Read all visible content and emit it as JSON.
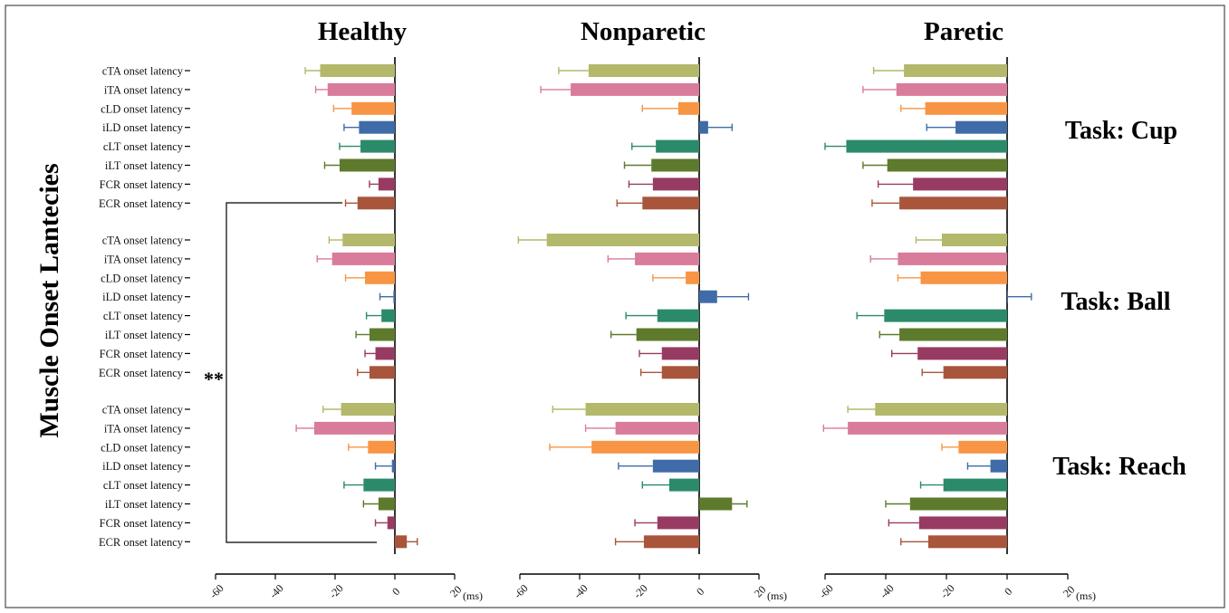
{
  "chart_data": {
    "type": "bar",
    "orientation": "horizontal",
    "y_title": "Muscle Onset Lantecies",
    "unit": "(ms)",
    "xlim": [
      -60,
      20
    ],
    "xticks": [
      -60,
      -40,
      -20,
      0,
      20
    ],
    "categories": [
      "cTA onset latency",
      "iTA onset latency",
      "cLD onset latency",
      "iLD onset latency",
      "cLT onset latency",
      "iLT onset latency",
      "FCR onset latency",
      "ECR onset latency"
    ],
    "muscle_colors": [
      "#b3b86a",
      "#d97b9a",
      "#f79545",
      "#3f6ca8",
      "#2a8a6a",
      "#5e7a2c",
      "#983b62",
      "#a8553b"
    ],
    "significance": "**",
    "panels": [
      {
        "title": "Healthy",
        "tasks": [
          {
            "values": [
              -25,
              -22.5,
              -14.5,
              -12,
              -11.5,
              -18.5,
              -5.5,
              -12.5
            ],
            "errors": [
              5,
              4,
              6,
              5,
              7,
              5,
              3,
              4
            ]
          },
          {
            "values": [
              -17.5,
              -21,
              -10,
              -0.5,
              -4.5,
              -8.5,
              -6.5,
              -8.5
            ],
            "errors": [
              4.5,
              5,
              6.5,
              4.5,
              5,
              4.5,
              3.5,
              4
            ]
          },
          {
            "values": [
              -18,
              -27,
              -9,
              -1,
              -10.5,
              -5.5,
              -2.5,
              4
            ],
            "errors": [
              6,
              6,
              6.5,
              5.5,
              6.5,
              5,
              4,
              3.5
            ]
          }
        ]
      },
      {
        "title": "Nonparetic",
        "tasks": [
          {
            "values": [
              -37,
              -43,
              -7,
              3,
              -14.5,
              -16,
              -15.5,
              -19
            ],
            "errors": [
              10,
              10,
              12,
              8,
              8,
              9,
              8,
              8.5
            ]
          },
          {
            "values": [
              -51,
              -21.5,
              -4.5,
              6,
              -14,
              -21,
              -12.5,
              -12.5
            ],
            "errors": [
              9.5,
              9,
              11,
              10.5,
              10.5,
              8.5,
              7.5,
              7
            ]
          },
          {
            "values": [
              -38,
              -28,
              -36,
              -15.5,
              -10,
              11,
              -14,
              -18.5
            ],
            "errors": [
              11,
              10,
              14,
              11.5,
              9,
              5,
              7.5,
              9.5
            ]
          }
        ]
      },
      {
        "title": "Paretic",
        "tasks": [
          {
            "values": [
              -34,
              -36.5,
              -27,
              -17,
              -53,
              -39.5,
              -31,
              -35.5
            ],
            "errors": [
              10,
              11,
              8,
              9.5,
              7,
              8,
              11.5,
              9
            ]
          },
          {
            "values": [
              -21.5,
              -36,
              -28.5,
              0,
              -40.5,
              -35.5,
              -29.5,
              -21
            ],
            "errors": [
              8.5,
              9,
              7.5,
              8,
              9,
              6.5,
              8.5,
              7
            ]
          },
          {
            "values": [
              -43.5,
              -52.5,
              -16,
              -5.5,
              -21,
              -32,
              -29,
              -26
            ],
            "errors": [
              9,
              8,
              5.5,
              7.5,
              7.5,
              8,
              10,
              9
            ]
          }
        ]
      }
    ]
  },
  "labels": {
    "task_labels": [
      "Task: Cup",
      "Task: Ball",
      "Task: Reach"
    ]
  }
}
